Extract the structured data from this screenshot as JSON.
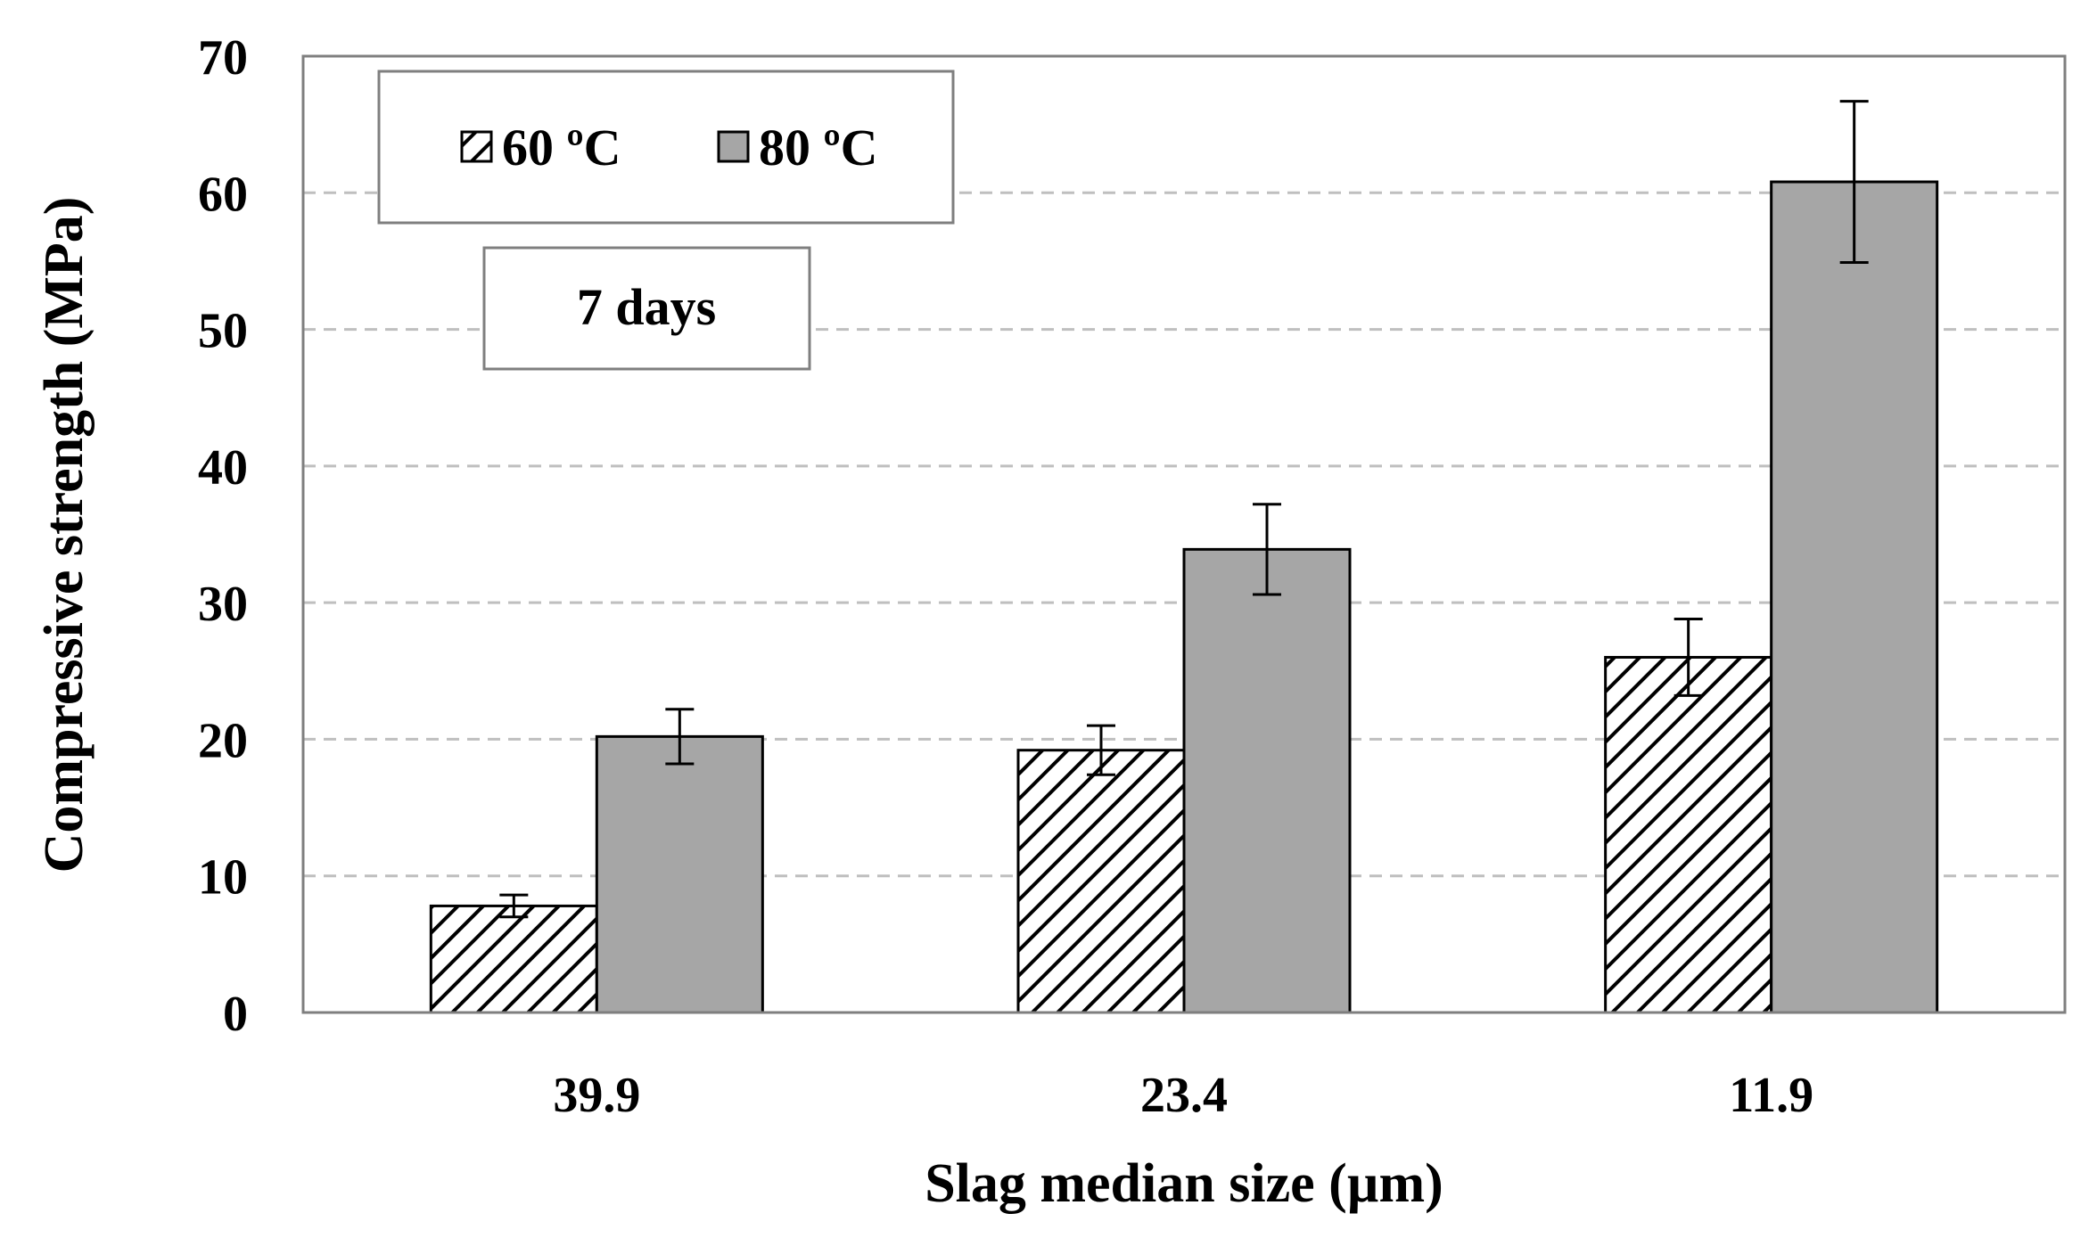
{
  "chart_data": {
    "type": "bar",
    "title": "",
    "annotation": "7 days",
    "xlabel": "Slag median size (µm)",
    "ylabel": "Compressive strength (MPa)",
    "ylim": [
      0,
      70
    ],
    "yticks": [
      "0",
      "10",
      "20",
      "30",
      "40",
      "50",
      "60",
      "70"
    ],
    "categories": [
      "39.9",
      "23.4",
      "11.9"
    ],
    "grid": "horizontal-dashed",
    "legend_position": "top-left",
    "series": [
      {
        "name": "60 ºC",
        "pattern": "hatched",
        "values": [
          7.8,
          19.2,
          26.0
        ],
        "errors": [
          0.8,
          1.8,
          2.8
        ]
      },
      {
        "name": "80 ºC",
        "pattern": "solid",
        "values": [
          20.2,
          33.9,
          60.8
        ],
        "errors": [
          2.0,
          3.3,
          5.9
        ]
      }
    ]
  },
  "colors": {
    "solid_bar": "#a6a6a6",
    "hatched_bar": "#ffffff",
    "hatch_line": "#000000",
    "grid": "#bfbfbf",
    "axis": "#7f7f7f",
    "bar_stroke": "#000000",
    "text": "#000000"
  }
}
